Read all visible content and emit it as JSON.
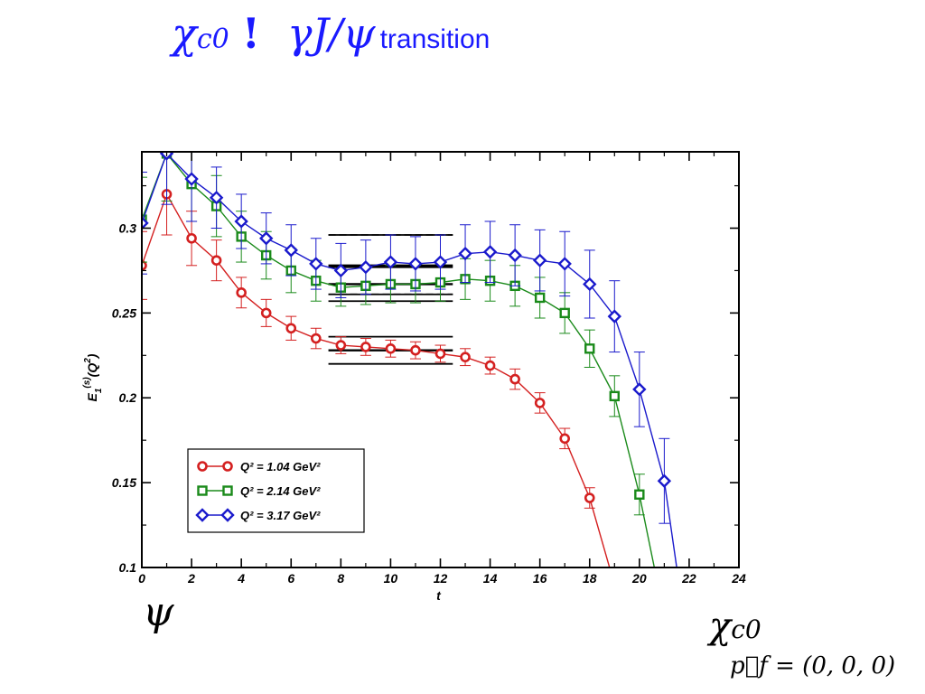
{
  "slide": {
    "title_symbol": "χ",
    "title_symbol_sub": "c0",
    "title_bang": "!",
    "title_gamma": "γJ/ψ",
    "title_word": "transition",
    "left_label": "ψ",
    "right_label_symbol": "χ",
    "right_label_sub": "c0",
    "momentum_label": "p⃗f = (0, 0, 0)"
  },
  "chart_data": {
    "type": "line",
    "xlabel": "t",
    "ylabel": "E1(s)(Q2)",
    "xlim": [
      0,
      24
    ],
    "ylim": [
      0.1,
      0.345
    ],
    "xticks": [
      0,
      2,
      4,
      6,
      8,
      10,
      12,
      14,
      16,
      18,
      20,
      22,
      24
    ],
    "yticks": [
      0.1,
      0.15,
      0.2,
      0.25,
      0.3
    ],
    "x_tick_labels": [
      "0",
      "2",
      "4",
      "6",
      "8",
      "10",
      "12",
      "14",
      "16",
      "18",
      "20",
      "22",
      "24"
    ],
    "y_tick_labels": [
      "0.1",
      "0.15",
      "0.2",
      "0.25",
      "0.3"
    ],
    "grid": false,
    "legend_placement": "bottom-left",
    "series": [
      {
        "name": "Q2 = 1.04 GeV2",
        "legend_text": "Q² = 1.04 GeV²",
        "marker": "circle",
        "color": "#d42020",
        "x": [
          0,
          1,
          2,
          3,
          4,
          5,
          6,
          7,
          8,
          9,
          10,
          11,
          12,
          13,
          14,
          15,
          16,
          17,
          18
        ],
        "y": [
          0.278,
          0.32,
          0.294,
          0.281,
          0.262,
          0.25,
          0.241,
          0.235,
          0.231,
          0.23,
          0.229,
          0.228,
          0.226,
          0.224,
          0.219,
          0.211,
          0.197,
          0.176,
          0.141
        ],
        "err": [
          0.02,
          0.024,
          0.016,
          0.012,
          0.009,
          0.008,
          0.007,
          0.006,
          0.005,
          0.005,
          0.005,
          0.005,
          0.005,
          0.005,
          0.005,
          0.006,
          0.006,
          0.006,
          0.006
        ],
        "tail_end": [
          18.8,
          0.1
        ],
        "fit_band": {
          "t_start": 7.5,
          "t_end": 12.5,
          "center": 0.228,
          "upper": 0.236,
          "lower": 0.22
        }
      },
      {
        "name": "Q2 = 2.14 GeV2",
        "legend_text": "Q² = 2.14 GeV²",
        "marker": "square",
        "color": "#1a8a1a",
        "x": [
          0,
          1,
          2,
          3,
          4,
          5,
          6,
          7,
          8,
          9,
          10,
          11,
          12,
          13,
          14,
          15,
          16,
          17,
          18,
          19,
          20
        ],
        "y": [
          0.305,
          0.344,
          0.326,
          0.313,
          0.295,
          0.284,
          0.275,
          0.269,
          0.265,
          0.266,
          0.267,
          0.267,
          0.268,
          0.27,
          0.269,
          0.266,
          0.259,
          0.25,
          0.229,
          0.201,
          0.143
        ],
        "err": [
          0.025,
          0.028,
          0.022,
          0.018,
          0.015,
          0.014,
          0.013,
          0.012,
          0.011,
          0.011,
          0.011,
          0.011,
          0.011,
          0.012,
          0.012,
          0.012,
          0.012,
          0.012,
          0.011,
          0.012,
          0.012
        ],
        "tail_end": [
          20.6,
          0.1
        ],
        "fit_band": {
          "t_start": 7.5,
          "t_end": 12.5,
          "center": 0.267,
          "upper": 0.277,
          "lower": 0.257
        }
      },
      {
        "name": "Q2 = 3.17 GeV2",
        "legend_text": "Q² = 3.17 GeV²",
        "marker": "diamond",
        "color": "#1a1acc",
        "x": [
          0,
          1,
          2,
          3,
          4,
          5,
          6,
          7,
          8,
          9,
          10,
          11,
          12,
          13,
          14,
          15,
          16,
          17,
          18,
          19,
          20,
          21
        ],
        "y": [
          0.303,
          0.344,
          0.329,
          0.318,
          0.304,
          0.294,
          0.287,
          0.279,
          0.275,
          0.277,
          0.28,
          0.279,
          0.28,
          0.285,
          0.286,
          0.284,
          0.281,
          0.279,
          0.267,
          0.248,
          0.205,
          0.151
        ],
        "err": [
          0.03,
          0.03,
          0.025,
          0.018,
          0.016,
          0.015,
          0.015,
          0.015,
          0.016,
          0.016,
          0.016,
          0.016,
          0.016,
          0.017,
          0.018,
          0.018,
          0.018,
          0.019,
          0.02,
          0.021,
          0.022,
          0.025
        ],
        "tail_end": [
          21.5,
          0.1
        ],
        "fit_band": {
          "t_start": 7.5,
          "t_end": 12.5,
          "center": 0.278,
          "upper": 0.296,
          "lower": 0.261
        }
      }
    ]
  }
}
